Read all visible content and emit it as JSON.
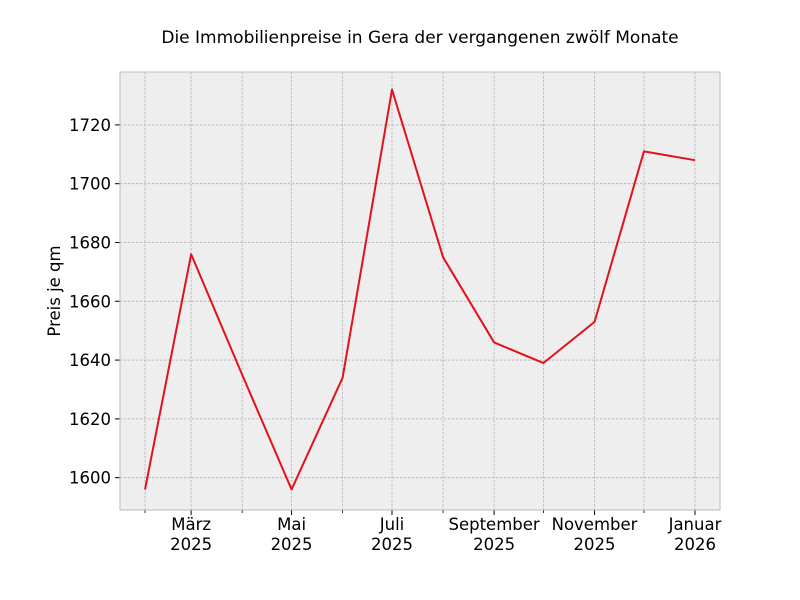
{
  "chart_data": {
    "type": "line",
    "title": "Die Immobilienpreise in Gera der vergangenen zwölf Monate",
    "xlabel": "",
    "ylabel": "Preis je qm",
    "x": [
      "2025-02-01",
      "2025-03-01",
      "2025-04-01",
      "2025-05-01",
      "2025-06-01",
      "2025-07-01",
      "2025-08-01",
      "2025-09-01",
      "2025-10-01",
      "2025-11-01",
      "2025-12-01",
      "2026-01-01"
    ],
    "series": [
      {
        "values": [
          1596,
          1676,
          1635,
          1596,
          1634,
          1732,
          1675,
          1646,
          1639,
          1653,
          1711,
          1708
        ]
      }
    ],
    "ylim": [
      1589,
      1738
    ],
    "yticks": [
      1600,
      1620,
      1640,
      1660,
      1680,
      1700,
      1720
    ],
    "xticks": [
      {
        "date": "2025-03-01",
        "line1": "März",
        "line2": "2025"
      },
      {
        "date": "2025-05-01",
        "line1": "Mai",
        "line2": "2025"
      },
      {
        "date": "2025-07-01",
        "line1": "Juli",
        "line2": "2025"
      },
      {
        "date": "2025-09-01",
        "line1": "September",
        "line2": "2025"
      },
      {
        "date": "2025-11-01",
        "line1": "November",
        "line2": "2025"
      },
      {
        "date": "2026-01-01",
        "line1": "Januar",
        "line2": "2026"
      }
    ],
    "minor_xticks": [
      "2025-02-01",
      "2025-04-01",
      "2025-06-01",
      "2025-08-01",
      "2025-10-01",
      "2025-12-01"
    ],
    "grid": true,
    "colors": {
      "line": "#e3111c",
      "plot_background": "#eeeeee",
      "grid": "#b2b2b2",
      "frame": "#bcbcbc"
    }
  }
}
